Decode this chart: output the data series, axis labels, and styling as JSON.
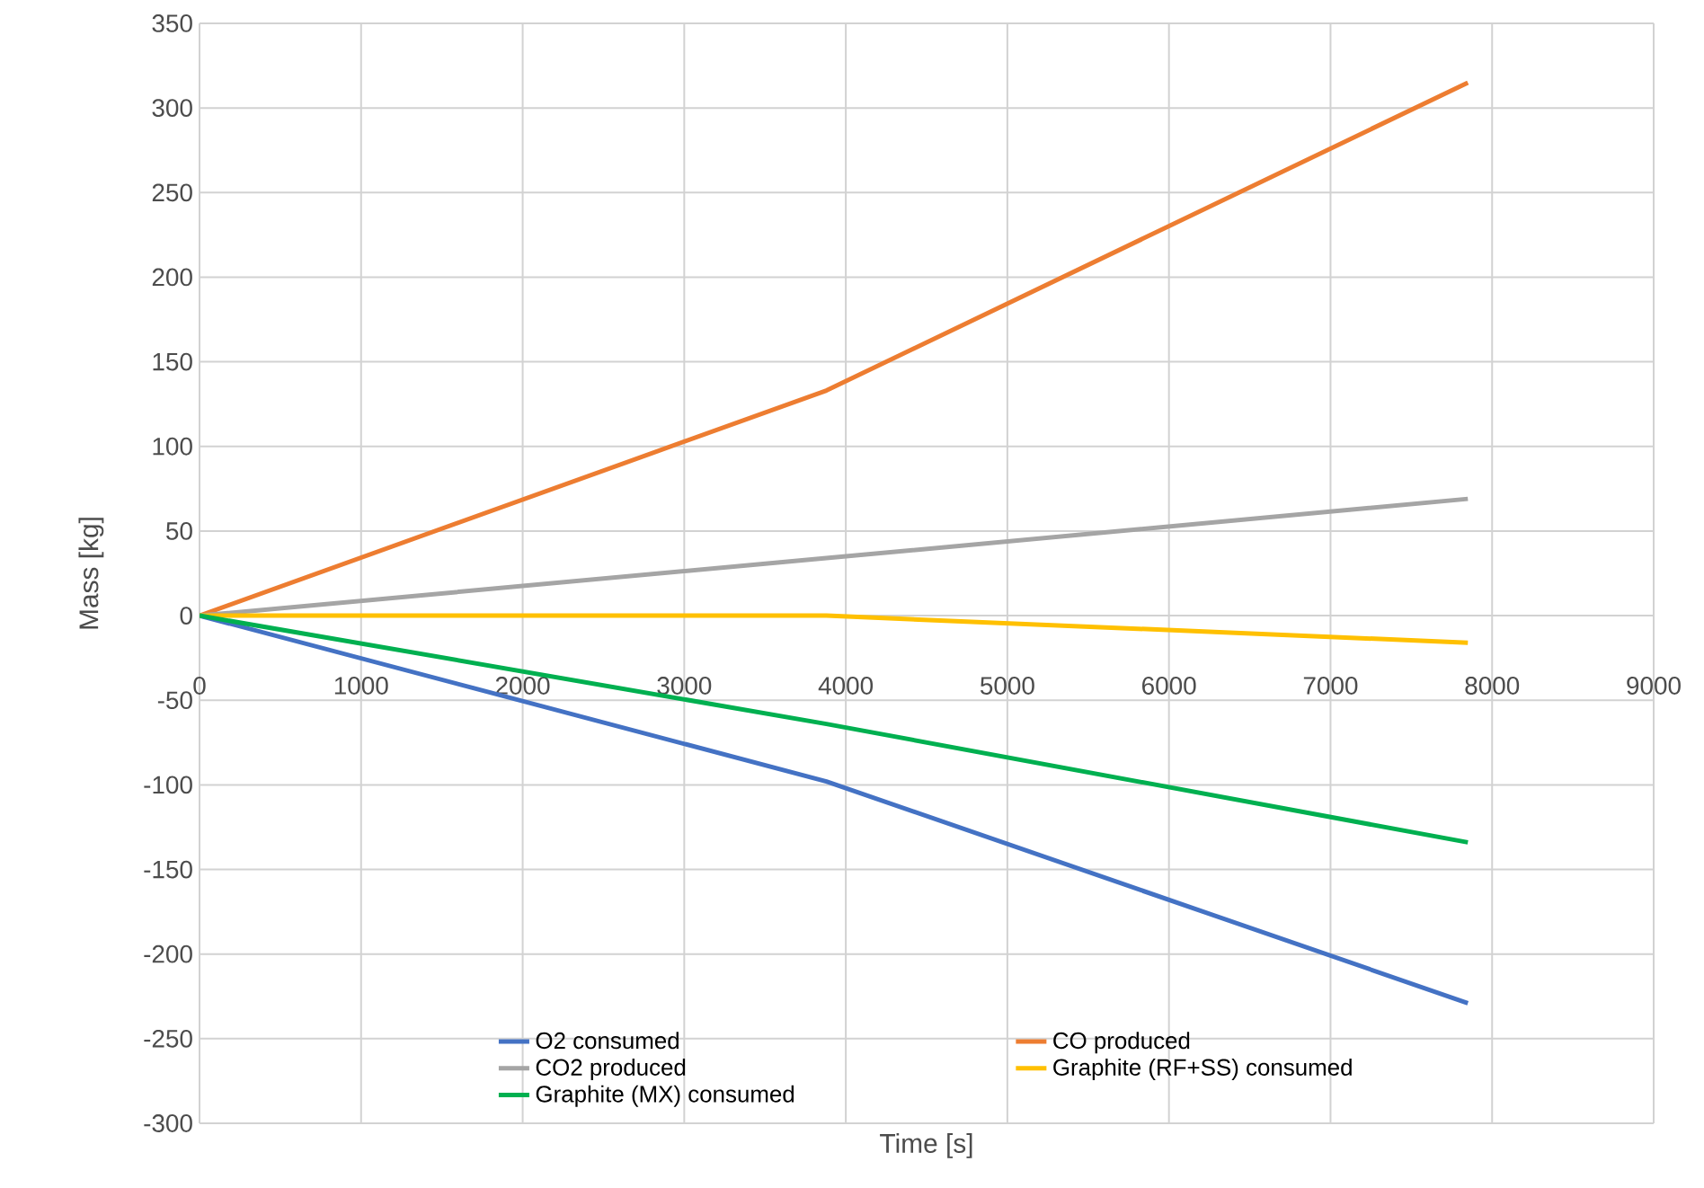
{
  "chart_data": {
    "type": "line",
    "xlabel": "Time [s]",
    "ylabel": "Mass [kg]",
    "xlim": [
      0,
      9000
    ],
    "ylim": [
      -300,
      350
    ],
    "xticks": [
      0,
      1000,
      2000,
      3000,
      4000,
      5000,
      6000,
      7000,
      8000,
      9000
    ],
    "yticks": [
      -300,
      -250,
      -200,
      -150,
      -100,
      -50,
      0,
      50,
      100,
      150,
      200,
      250,
      300,
      350
    ],
    "grid": true,
    "legend": "bottom",
    "marker": "none",
    "line_style": "solid",
    "series": [
      {
        "name": "O2 consumed",
        "color": "#4472c4",
        "x": [
          0,
          3880,
          7850
        ],
        "values": [
          0,
          -98,
          -229
        ]
      },
      {
        "name": "CO produced",
        "color": "#ed7d31",
        "x": [
          0,
          3880,
          7850
        ],
        "values": [
          0,
          133,
          315
        ]
      },
      {
        "name": "CO2 produced",
        "color": "#a5a5a5",
        "x": [
          0,
          3880,
          7850
        ],
        "values": [
          0,
          34,
          69
        ]
      },
      {
        "name": "Graphite (RF+SS) consumed",
        "color": "#ffc000",
        "x": [
          0,
          3880,
          7850
        ],
        "values": [
          0,
          0,
          -16
        ]
      },
      {
        "name": "Graphite (MX) consumed",
        "color": "#00b050",
        "x": [
          0,
          3880,
          7850
        ],
        "values": [
          0,
          -64,
          -134
        ]
      }
    ]
  }
}
